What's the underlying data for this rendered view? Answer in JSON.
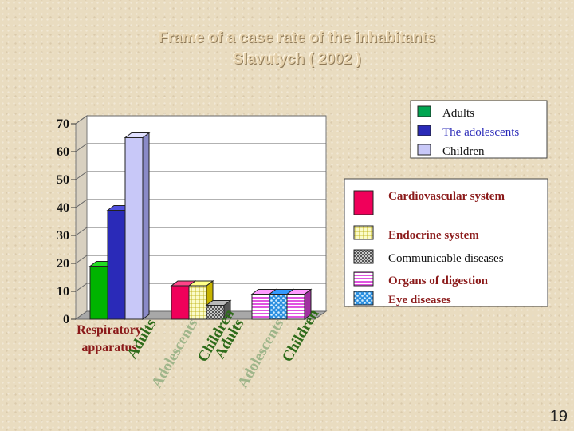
{
  "slide": {
    "title_line1": "Frame of a case rate of  the inhabitants",
    "title_line2": "Slavutych ( 2002  )",
    "page_number": "19"
  },
  "chart_data": {
    "type": "bar",
    "style": "3d-clustered",
    "y_ticks": [
      "0",
      "10",
      "20",
      "30",
      "40",
      "50",
      "60",
      "70"
    ],
    "ylim": [
      0,
      70
    ],
    "grid": true,
    "groups": [
      {
        "name": "Respiratory apparatus",
        "fill": "solid",
        "bars": [
          {
            "label": "Adults",
            "value": 19,
            "color": "#00b400",
            "top": "#22dd22",
            "side": "#006b00"
          },
          {
            "label": "Adolescents",
            "value": 39,
            "color": "#2a2ab8",
            "top": "#5050e0",
            "side": "#10106a"
          },
          {
            "label": "Children",
            "value": 65,
            "color": "#c8c8f8",
            "top": "#e0e0ff",
            "side": "#8a8ac8"
          }
        ]
      },
      {
        "name": "Cardiovascular system",
        "fill": "solid",
        "bars": [
          {
            "label": "Adults",
            "value": 12,
            "color": "#f0005a",
            "top": "#ff4488",
            "side": "#960036"
          },
          {
            "label": "Adolescents",
            "value": 12,
            "color": "#f6f6b8",
            "pattern": "grid-yellow",
            "top": "#ffff88",
            "side": "#c8b400"
          },
          {
            "label": "Children",
            "value": 5,
            "color": "#909090",
            "pattern": "checker",
            "top": "#b8b8b8",
            "side": "#555555"
          }
        ]
      },
      {
        "name": "Organs of digestion",
        "fill": "solid",
        "bars": [
          {
            "label": "Adults",
            "value": 9,
            "color": "#ee66ee",
            "pattern": "stripes-pink",
            "top": "#ff99ff",
            "side": "#a030a0"
          },
          {
            "label": "Adolescents",
            "value": 9,
            "color": "#88ccff",
            "pattern": "dots-blue",
            "top": "#3399ff",
            "side": "#2266aa"
          },
          {
            "label": "Children",
            "value": 9,
            "color": "#ee66ee",
            "pattern": "stripes-pink",
            "top": "#ff99ff",
            "side": "#a030a0"
          }
        ]
      }
    ],
    "x_labels": [
      "Respiratory",
      "apparatus",
      "Adults",
      "Adolescents",
      "Children",
      "Adults",
      "Adolescents",
      "Children",
      "Adults",
      "Adolescents",
      "Children"
    ],
    "legend_age": {
      "placement": "top-right",
      "entries": [
        {
          "label": "Adults",
          "color": "#00a651"
        },
        {
          "label": "The adolescents",
          "color": "#2a2ab8"
        },
        {
          "label": "Children",
          "color": "#c8c8f8"
        }
      ]
    },
    "legend_systems": {
      "placement": "right",
      "entries": [
        {
          "label": "Cardiovascular system",
          "swatch": "solid-magenta"
        },
        {
          "label": "Endocrine system",
          "swatch": "grid-yellow"
        },
        {
          "label": "Communicable diseases",
          "swatch": "checker"
        },
        {
          "label": "Organs of digestion",
          "swatch": "stripes-pink"
        },
        {
          "label": "Eye diseases",
          "swatch": "dots-blue"
        }
      ]
    }
  }
}
